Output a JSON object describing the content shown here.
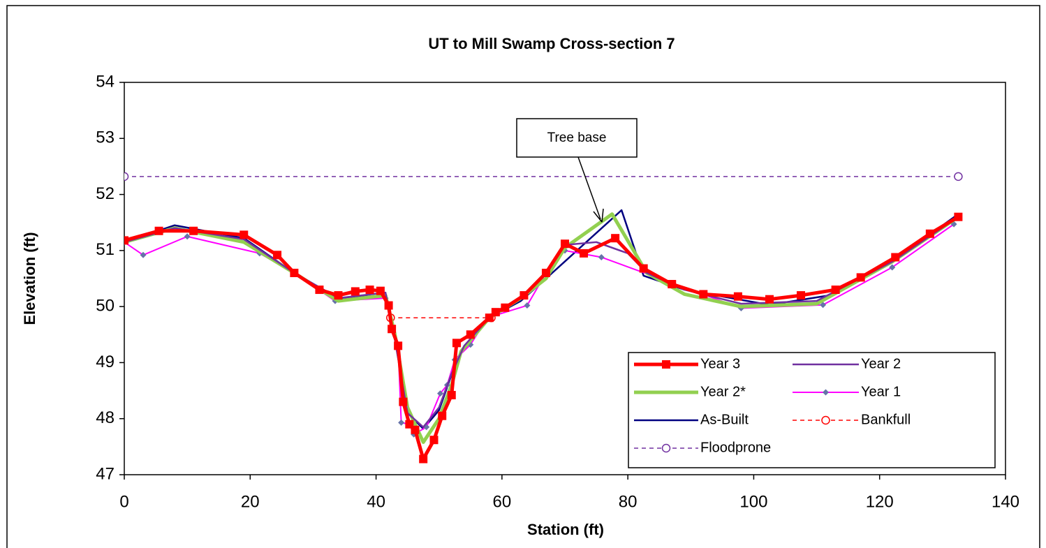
{
  "chart_data": {
    "type": "line",
    "title": "UT to Mill Swamp Cross-section 7",
    "x_label": "Station (ft)",
    "y_label": "Elevation (ft)",
    "xlim": [
      0,
      140
    ],
    "xticks": [
      0,
      20,
      40,
      60,
      80,
      100,
      120,
      140
    ],
    "ylim": [
      47,
      54
    ],
    "yticks": [
      47,
      48,
      49,
      50,
      51,
      52,
      53,
      54
    ],
    "grid": false,
    "legend": "lower right",
    "annotations": [
      {
        "text": "Tree base"
      }
    ],
    "series": [
      {
        "name": "Year 3",
        "color": "#ff0000",
        "width": 5,
        "marker": "square",
        "line_style": "solid",
        "x": [
          0,
          5.5,
          11,
          19,
          24.3,
          27,
          31,
          34,
          36.7,
          39,
          40.7,
          42,
          42.5,
          43.5,
          44.3,
          45.3,
          46.2,
          47.5,
          49.2,
          50.5,
          52,
          52.8,
          55,
          58,
          59,
          60.5,
          63.5,
          67,
          70,
          73,
          78,
          82.5,
          87,
          92,
          97.5,
          102.5,
          107.5,
          113,
          117,
          122.5,
          128,
          132.5
        ],
        "values": [
          51.18,
          51.35,
          51.35,
          51.28,
          50.92,
          50.6,
          50.3,
          50.2,
          50.27,
          50.3,
          50.28,
          50.02,
          49.6,
          49.3,
          48.3,
          47.9,
          47.8,
          47.28,
          47.62,
          48.05,
          48.42,
          49.35,
          49.5,
          49.8,
          49.9,
          49.98,
          50.2,
          50.6,
          51.12,
          50.95,
          51.22,
          50.68,
          50.4,
          50.22,
          50.18,
          50.13,
          50.2,
          50.3,
          50.52,
          50.88,
          51.3,
          51.6
        ]
      },
      {
        "name": "Year 2",
        "color": "#7030a0",
        "width": 2.5,
        "marker": "none",
        "line_style": "solid",
        "x": [
          0,
          8,
          19,
          27,
          34,
          41.5,
          43,
          45,
          47.5,
          50,
          52,
          54,
          58,
          63,
          67,
          70,
          75,
          80,
          83,
          89,
          98,
          110,
          122,
          132.5
        ],
        "values": [
          51.15,
          51.4,
          51.2,
          50.6,
          50.15,
          50.25,
          49.4,
          48.1,
          47.85,
          48.2,
          48.8,
          49.3,
          49.8,
          50.15,
          50.6,
          51.1,
          51.15,
          50.95,
          50.6,
          50.3,
          50.05,
          50.1,
          50.8,
          51.6
        ]
      },
      {
        "name": "Year 2*",
        "color": "#92d050",
        "width": 5,
        "marker": "none",
        "line_style": "solid",
        "x": [
          0,
          8,
          19,
          27,
          34,
          41.5,
          43,
          45,
          47.5,
          50,
          52,
          53.5,
          58,
          63,
          67,
          70,
          77.5,
          83,
          89,
          98,
          110,
          122,
          132.5
        ],
        "values": [
          51.15,
          51.4,
          51.15,
          50.6,
          50.1,
          50.2,
          49.5,
          48.2,
          47.58,
          48,
          48.6,
          49.2,
          49.8,
          50.15,
          50.5,
          51.05,
          51.65,
          50.6,
          50.22,
          50,
          50.05,
          50.8,
          51.6
        ]
      },
      {
        "name": "Year 1",
        "color": "#ff00ff",
        "width": 2,
        "marker": "diamond",
        "line_style": "solid",
        "x": [
          0,
          3,
          10,
          21.5,
          27,
          33.5,
          41.5,
          42.5,
          43.5,
          44,
          45.3,
          46,
          48,
          50.2,
          51.3,
          52.5,
          55,
          57.7,
          64,
          67,
          70,
          75.8,
          98,
          111,
          122,
          131.8
        ],
        "values": [
          51.15,
          50.92,
          51.25,
          50.95,
          50.6,
          50.1,
          50.15,
          49.6,
          49.3,
          47.93,
          47.9,
          47.72,
          47.85,
          48.45,
          48.6,
          49.05,
          49.32,
          49.8,
          50.02,
          50.6,
          51,
          50.88,
          49.97,
          50.03,
          50.7,
          51.47
        ]
      },
      {
        "name": "As-Built",
        "color": "#000080",
        "width": 2.5,
        "marker": "none",
        "line_style": "solid",
        "x": [
          0,
          8,
          19,
          27,
          34,
          41.5,
          43,
          45,
          47.5,
          50,
          53,
          58,
          63,
          67,
          79,
          82.5,
          89,
          102.5,
          112,
          122,
          132.5
        ],
        "values": [
          51.15,
          51.45,
          51.22,
          50.6,
          50.15,
          50.2,
          49.5,
          48.1,
          47.82,
          48.15,
          49.1,
          49.8,
          50.1,
          50.5,
          51.72,
          50.55,
          50.3,
          50.03,
          50.2,
          50.8,
          51.65
        ]
      },
      {
        "name": "Bankfull",
        "color": "#ff0000",
        "width": 1.5,
        "marker": "circle",
        "line_style": "dashed",
        "x": [
          42.3,
          58.3
        ],
        "values": [
          49.8,
          49.8
        ]
      },
      {
        "name": "Floodprone",
        "color": "#7030a0",
        "width": 1.5,
        "marker": "circle",
        "line_style": "dashed",
        "x": [
          0,
          132.5
        ],
        "values": [
          52.32,
          52.32
        ]
      }
    ]
  }
}
